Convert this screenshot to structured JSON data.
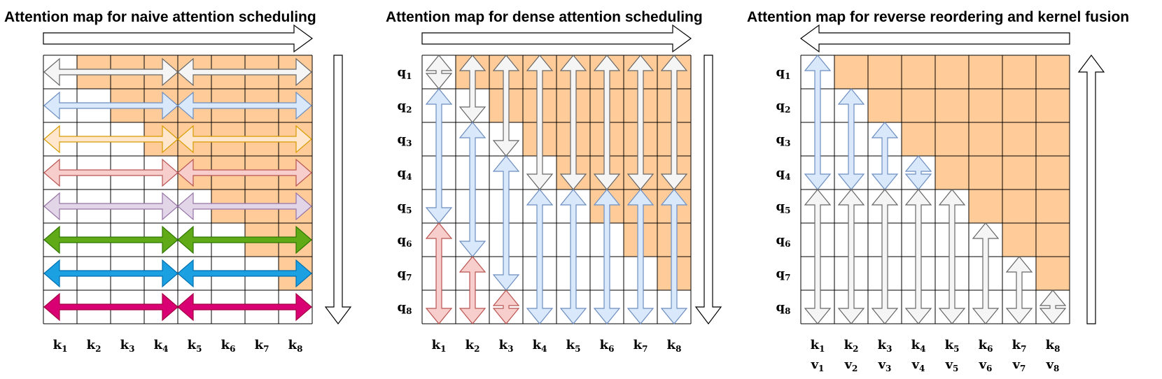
{
  "colors": {
    "masked": "#FFCC99",
    "grid": "#000000",
    "gray_fill": "#F5F5F5",
    "gray_stroke": "#666666",
    "blue_fill": "#DAE8FC",
    "blue_stroke": "#6C8EBF",
    "red_fill": "#F8CECC",
    "red_stroke": "#B85450",
    "yellow_fill": "#FFF2CC",
    "yellow_stroke": "#D6B656",
    "orange_fill": "#FFE6CC",
    "orange_stroke": "#D79B00",
    "purple_fill": "#E1D5E7",
    "purple_stroke": "#9673A6",
    "green_fill": "#60A917",
    "green_stroke": "#2D7600",
    "cyan_fill": "#1BA1E2",
    "cyan_stroke": "#006EAF",
    "magenta_fill": "#D80073",
    "magenta_stroke": "#A50040"
  },
  "panels": [
    {
      "title": "Attention map for naive attention scheduling",
      "flow_direction": [
        "right",
        "down"
      ],
      "row_labels": [],
      "col_labels": [
        "k",
        "k",
        "k",
        "k",
        "k",
        "k",
        "k",
        "k"
      ],
      "col_subs": [
        "1",
        "2",
        "3",
        "4",
        "5",
        "6",
        "7",
        "8"
      ],
      "col_labels2": [],
      "col_subs2": []
    },
    {
      "title": "Attention map for dense attention scheduling",
      "flow_direction": [
        "right",
        "down"
      ],
      "row_labels": [
        "q",
        "q",
        "q",
        "q",
        "q",
        "q",
        "q",
        "q"
      ],
      "row_subs": [
        "1",
        "2",
        "3",
        "4",
        "5",
        "6",
        "7",
        "8"
      ],
      "col_labels": [
        "k",
        "k",
        "k",
        "k",
        "k",
        "k",
        "k",
        "k"
      ],
      "col_subs": [
        "1",
        "2",
        "3",
        "4",
        "5",
        "6",
        "7",
        "8"
      ],
      "col_labels2": [],
      "col_subs2": []
    },
    {
      "title": "Attention map for reverse reordering and kernel fusion",
      "flow_direction": [
        "left",
        "up"
      ],
      "row_labels": [
        "q",
        "q",
        "q",
        "q",
        "q",
        "q",
        "q",
        "q"
      ],
      "row_subs": [
        "1",
        "2",
        "3",
        "4",
        "5",
        "6",
        "7",
        "8"
      ],
      "col_labels": [
        "k",
        "k",
        "k",
        "k",
        "k",
        "k",
        "k",
        "k"
      ],
      "col_subs": [
        "1",
        "2",
        "3",
        "4",
        "5",
        "6",
        "7",
        "8"
      ],
      "col_labels2": [
        "v",
        "v",
        "v",
        "v",
        "v",
        "v",
        "v",
        "v"
      ],
      "col_subs2": [
        "1",
        "2",
        "3",
        "4",
        "5",
        "6",
        "7",
        "8"
      ]
    }
  ],
  "naive_row_colors": [
    "gray",
    "blue",
    "orange",
    "red",
    "purple",
    "green",
    "cyan",
    "magenta"
  ]
}
